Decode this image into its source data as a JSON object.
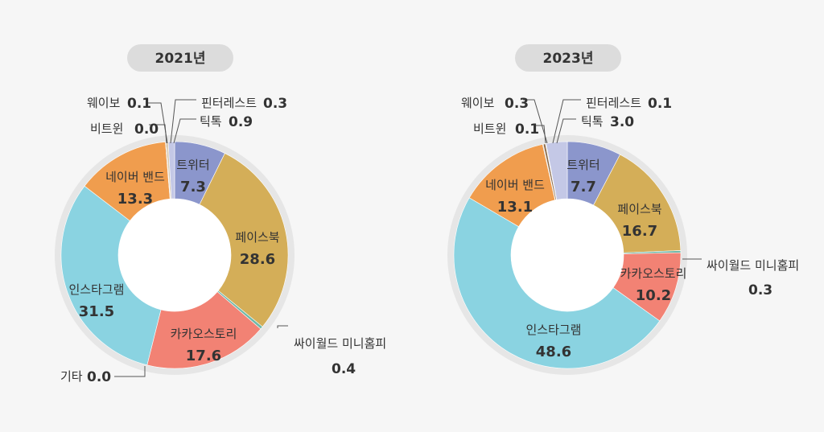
{
  "chart_data": [
    {
      "type": "pie",
      "title": "2021년",
      "slices": [
        {
          "name": "트위터",
          "value": 7.3,
          "color": "#8b96cc"
        },
        {
          "name": "페이스북",
          "value": 28.6,
          "color": "#d4ae58"
        },
        {
          "name": "싸이월드 미니홈피",
          "value": 0.4,
          "color": "#6fb8a8"
        },
        {
          "name": "카카오스토리",
          "value": 17.6,
          "color": "#f28274"
        },
        {
          "name": "기타",
          "value": 0.0,
          "color": "#b0b0b0"
        },
        {
          "name": "인스타그램",
          "value": 31.5,
          "color": "#8ad3e1"
        },
        {
          "name": "네이버 밴드",
          "value": 13.3,
          "color": "#f09d4e"
        },
        {
          "name": "비트윈",
          "value": 0.0,
          "color": "#b0b0b0"
        },
        {
          "name": "웨이보",
          "value": 0.1,
          "color": "#8a6a4a"
        },
        {
          "name": "핀터레스트",
          "value": 0.3,
          "color": "#d8c9b0"
        },
        {
          "name": "틱톡",
          "value": 0.9,
          "color": "#c4c8e6"
        }
      ]
    },
    {
      "type": "pie",
      "title": "2023년",
      "slices": [
        {
          "name": "트위터",
          "value": 7.7,
          "color": "#8b96cc"
        },
        {
          "name": "페이스북",
          "value": 16.7,
          "color": "#d4ae58"
        },
        {
          "name": "싸이월드 미니홈피",
          "value": 0.3,
          "color": "#6fb8a8"
        },
        {
          "name": "카카오스토리",
          "value": 10.2,
          "color": "#f28274"
        },
        {
          "name": "인스타그램",
          "value": 48.6,
          "color": "#8ad3e1"
        },
        {
          "name": "네이버 밴드",
          "value": 13.1,
          "color": "#f09d4e"
        },
        {
          "name": "비트윈",
          "value": 0.1,
          "color": "#b0b0b0"
        },
        {
          "name": "웨이보",
          "value": 0.3,
          "color": "#8a6a4a"
        },
        {
          "name": "핀터레스트",
          "value": 0.1,
          "color": "#d8c9b0"
        },
        {
          "name": "틱톡",
          "value": 3.0,
          "color": "#c4c8e6"
        }
      ]
    }
  ]
}
